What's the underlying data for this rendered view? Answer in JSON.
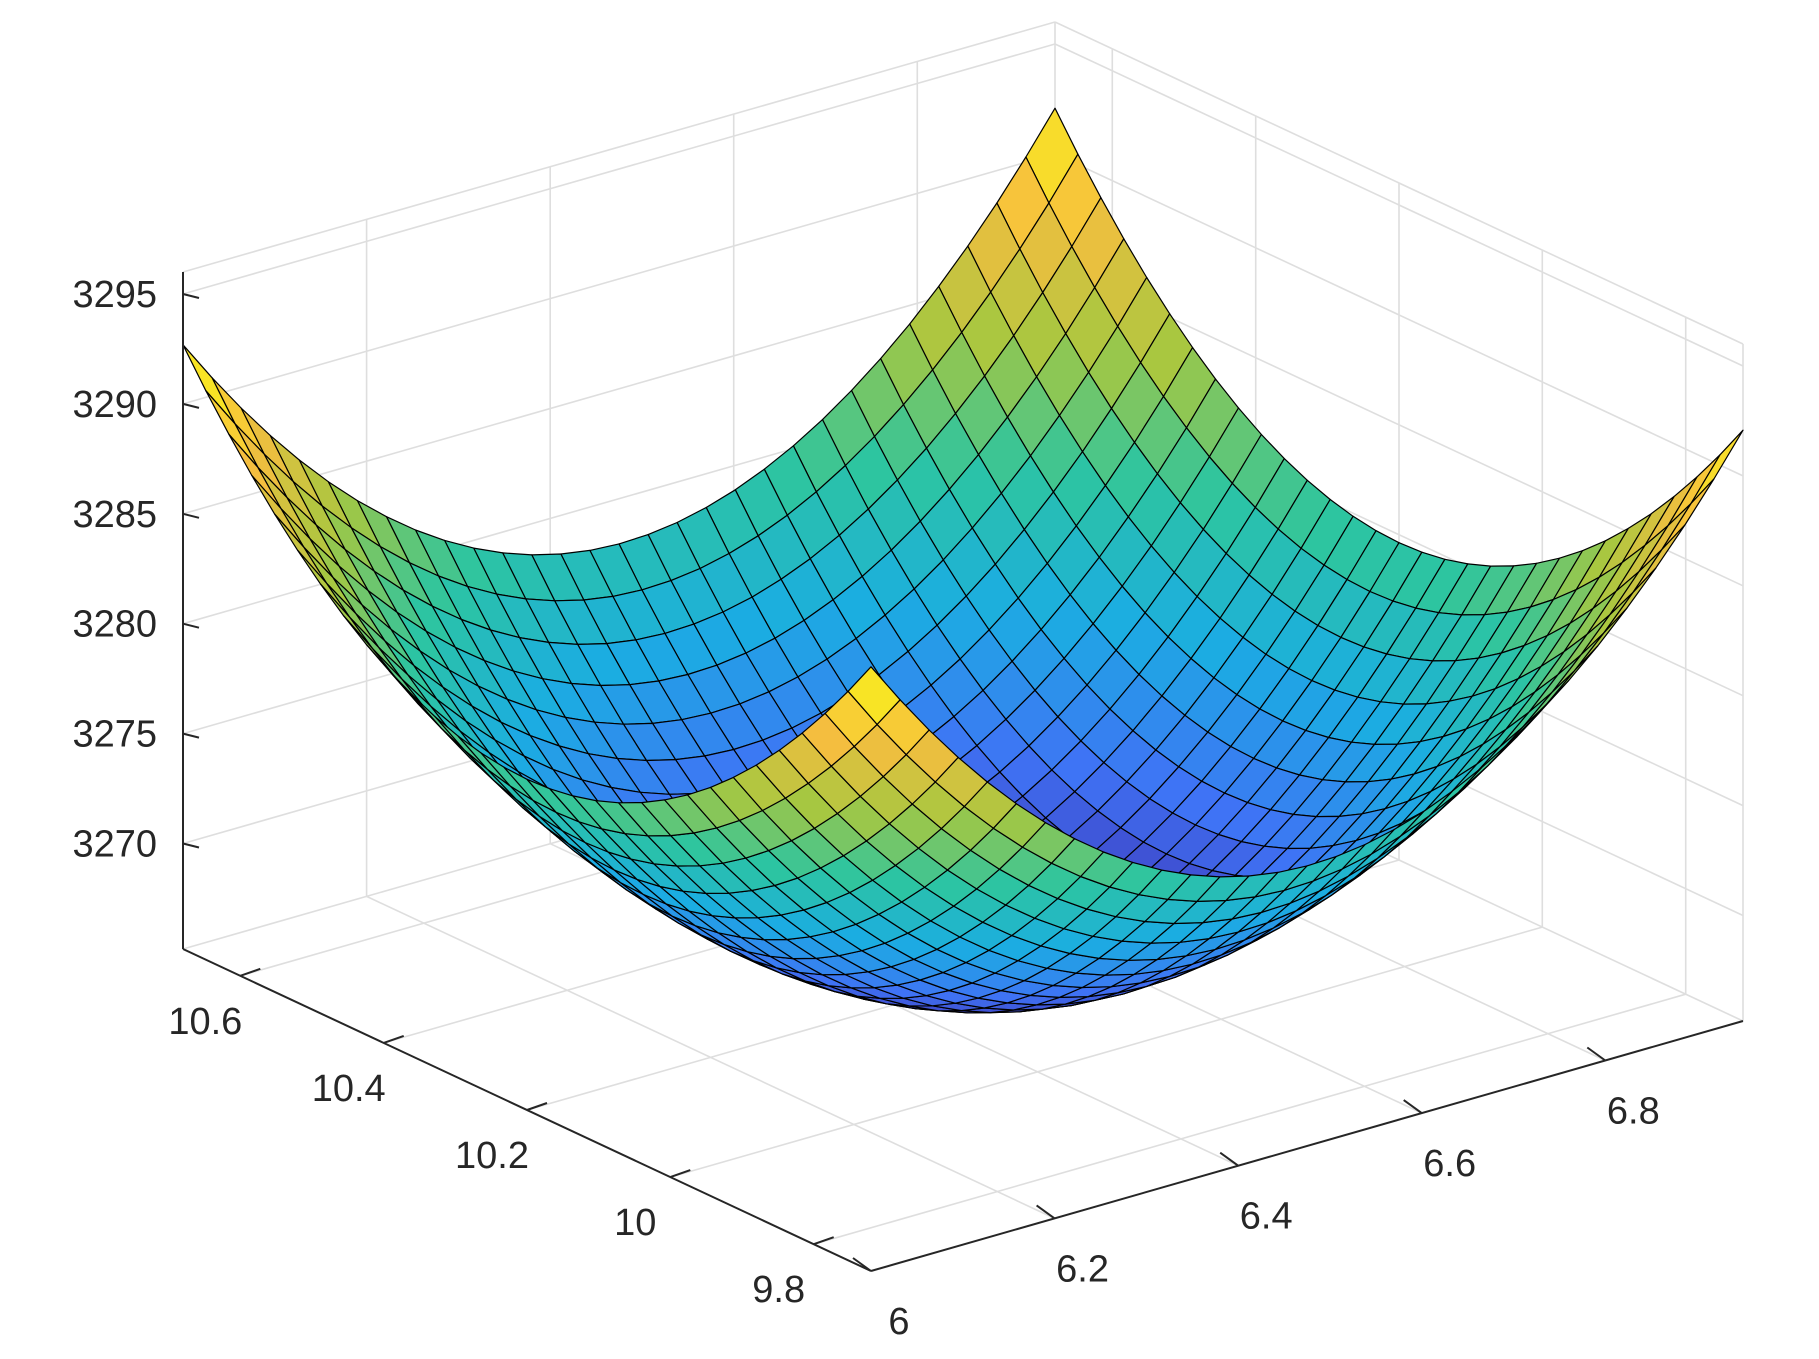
{
  "chart_data": {
    "type": "surface",
    "title": "",
    "xlabel": "",
    "ylabel": "",
    "zlabel": "",
    "grid": true,
    "colormap": "parula",
    "colormap_stops": [
      "#3e26a8",
      "#3f73f5",
      "#1bade2",
      "#2dc5a0",
      "#a7c740",
      "#f7be3f",
      "#f9fb15"
    ],
    "edge_color": "#000000",
    "x_label_axis": {
      "range": [
        6.0,
        6.95
      ],
      "ticks": [
        "6",
        "6.2",
        "6.4",
        "6.6",
        "6.8"
      ],
      "tick_values": [
        6.0,
        6.2,
        6.4,
        6.6,
        6.8
      ]
    },
    "y_label_axis": {
      "range": [
        9.72,
        10.68
      ],
      "ticks": [
        "9.8",
        "10",
        "10.2",
        "10.4",
        "10.6"
      ],
      "tick_values": [
        9.8,
        10.0,
        10.2,
        10.4,
        10.6
      ]
    },
    "z_axis": {
      "range": [
        3265.2,
        3296.0
      ],
      "ticks": [
        "3270",
        "3275",
        "3280",
        "3285",
        "3290",
        "3295"
      ],
      "tick_values": [
        3270,
        3275,
        3280,
        3285,
        3290,
        3295
      ]
    },
    "surface": {
      "a_range": [
        6.0,
        6.95
      ],
      "b_range": [
        9.72,
        10.68
      ],
      "a_count": 31,
      "b_count": 31,
      "formula": "z = 3265.5 + 64*(a - 6.48)^2 + 54*(b - 10.20)^2",
      "z_min": 3265.5,
      "a_center": 6.48,
      "b_center": 10.2,
      "a_coeff": 64,
      "b_coeff": 54
    }
  }
}
